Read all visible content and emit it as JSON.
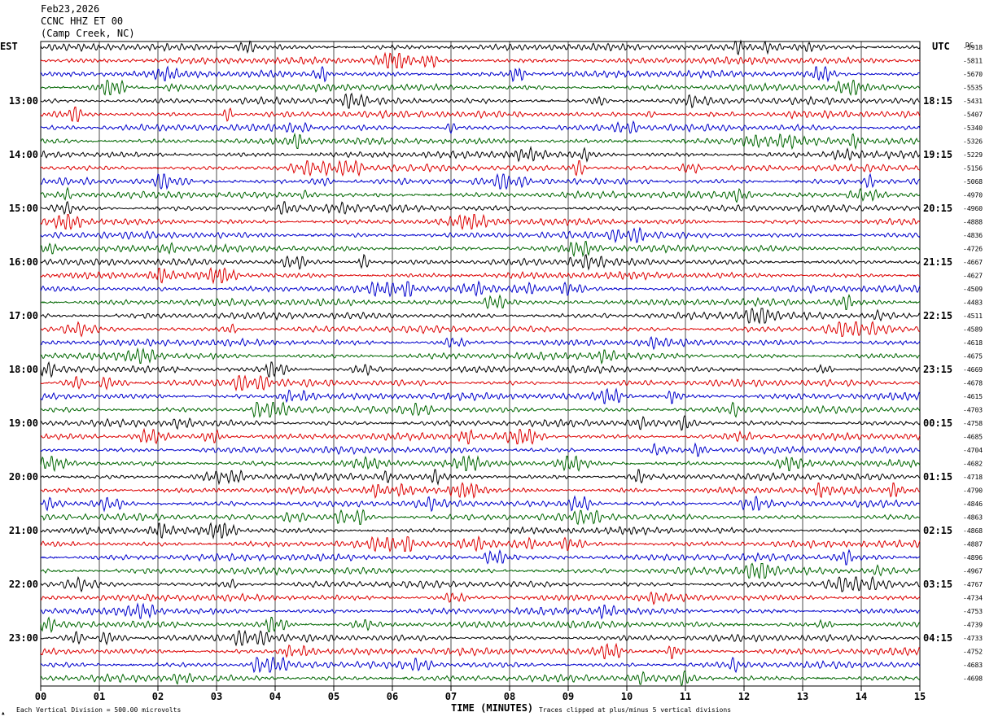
{
  "header": {
    "date": "Feb23,2026",
    "station": "CCNC HHZ ET 00",
    "location": "(Camp Creek, NC)"
  },
  "left_zone_label": "EST",
  "right_zone_label": "UTC",
  "dc_label": "DC",
  "footer": {
    "left": "Each Vertical Division =  500.00 microvolts",
    "center": "TIME (MINUTES)",
    "right": "Traces clipped at plus/minus 5 vertical divisions",
    "corner_mark": "▲"
  },
  "colors": {
    "black": "#000000",
    "red": "#dd0000",
    "blue": "#0000cc",
    "green": "#006600",
    "grid": "#000000"
  },
  "chart_data": {
    "type": "line",
    "title": "",
    "xlabel": "TIME (MINUTES)",
    "xlim": [
      0,
      15
    ],
    "x_ticks": [
      "00",
      "01",
      "02",
      "03",
      "04",
      "05",
      "06",
      "07",
      "08",
      "09",
      "10",
      "11",
      "12",
      "13",
      "14",
      "15"
    ],
    "trace_minutes": 15,
    "trace_color_cycle": [
      "black",
      "red",
      "blue",
      "green"
    ],
    "hour_labels_est": [
      "13:00",
      "14:00",
      "15:00",
      "16:00",
      "17:00",
      "18:00",
      "19:00",
      "20:00",
      "21:00",
      "22:00",
      "23:00"
    ],
    "hour_labels_utc": [
      "18:15",
      "19:15",
      "20:15",
      "21:15",
      "22:15",
      "23:15",
      "00:15",
      "01:15",
      "02:15",
      "03:15",
      "04:15"
    ],
    "hour_label_first_trace": 4,
    "traces_per_hour": 4,
    "dc_values": [
      -5918,
      -5811,
      -5670,
      -5535,
      -5431,
      -5407,
      -5340,
      -5326,
      -5229,
      -5156,
      -5068,
      -4970,
      -4960,
      -4888,
      -4836,
      -4726,
      -4667,
      -4627,
      -4509,
      -4483,
      -4511,
      -4589,
      -4618,
      -4675,
      -4669,
      -4678,
      -4615,
      -4703,
      -4758,
      -4685,
      -4704,
      -4682,
      -4718,
      -4790,
      -4846,
      -4863,
      -4868,
      -4887,
      -4896,
      -4967,
      -4767,
      -4734,
      -4753,
      -4739,
      -4733,
      -4752,
      -4683,
      -4698
    ]
  }
}
